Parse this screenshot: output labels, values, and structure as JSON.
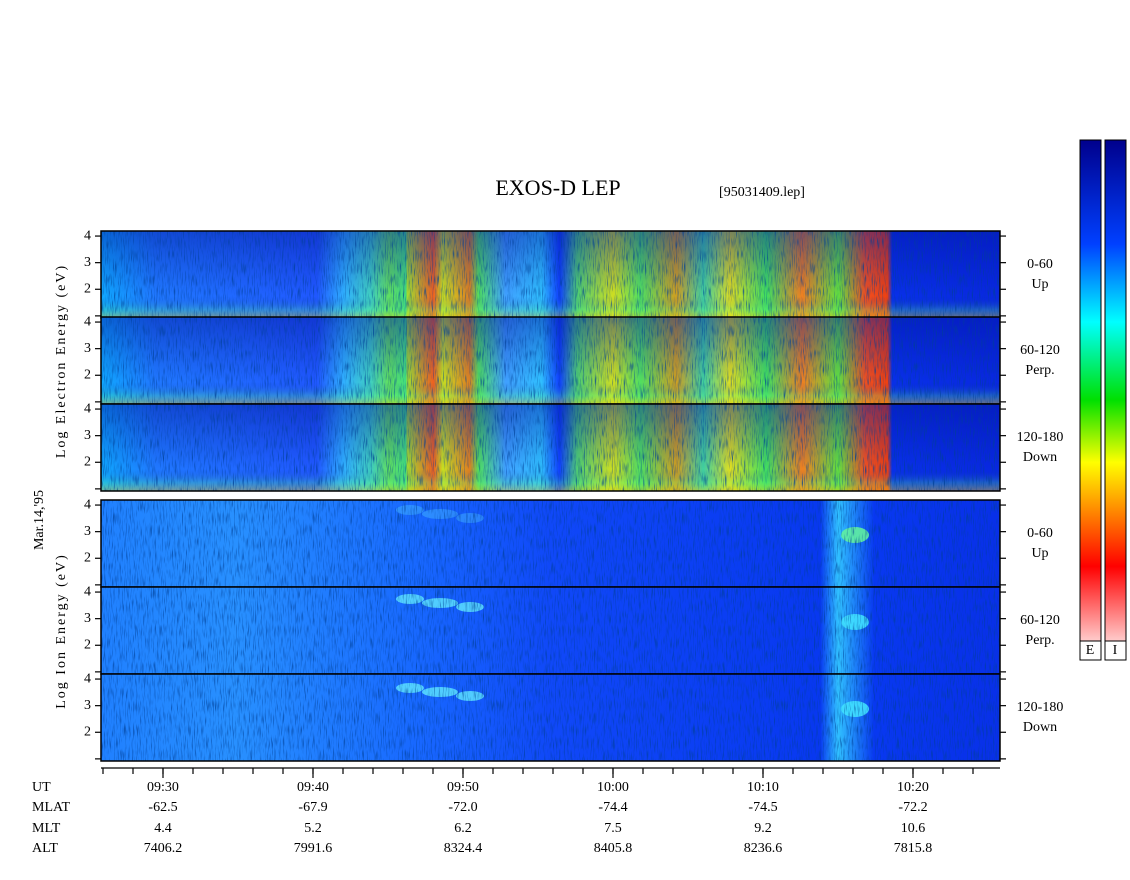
{
  "chart_data": {
    "type": "spectrogram",
    "title": "EXOS-D LEP",
    "subtitle": "[95031409.lep]",
    "date_label": "Mar.14,'95",
    "y_labels": [
      "Log Electron Energy (eV)",
      "Log Ion Energy (eV)"
    ],
    "ylim": [
      0.92,
      4.19
    ],
    "yticks": [
      {
        "value": 1,
        "label": null
      },
      2,
      3,
      4
    ],
    "panels": [
      {
        "label": [
          "0-60",
          "Up"
        ]
      },
      {
        "label": [
          "60-120",
          "Perp."
        ]
      },
      {
        "label": [
          "120-180",
          "Down"
        ]
      },
      {
        "label": [
          "0-60",
          "Up"
        ]
      },
      {
        "label": [
          "60-120",
          "Perp."
        ]
      },
      {
        "label": [
          "120-180",
          "Down"
        ]
      }
    ],
    "x_rows": [
      {
        "name": "UT",
        "values": [
          "09:30",
          "09:40",
          "09:50",
          "10:00",
          "10:10",
          "10:20"
        ]
      },
      {
        "name": "MLAT",
        "values": [
          "-62.5",
          "-67.9",
          "-72.0",
          "-74.4",
          "-74.5",
          "-72.2"
        ]
      },
      {
        "name": "MLT",
        "values": [
          "4.4",
          "5.2",
          "6.2",
          "7.5",
          "9.2",
          "10.6"
        ]
      },
      {
        "name": "ALT",
        "values": [
          "7406.2",
          "7991.6",
          "8324.4",
          "8405.8",
          "8236.6",
          "7815.8"
        ]
      }
    ],
    "colorbar_labels": [
      "E",
      "I"
    ]
  }
}
